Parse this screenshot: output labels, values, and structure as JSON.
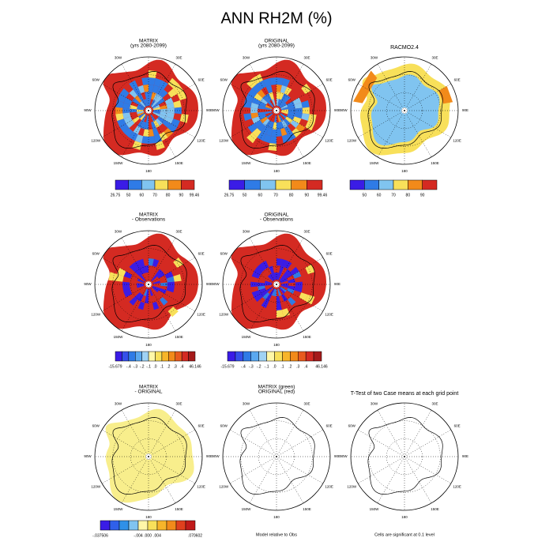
{
  "title": "ANN RH2M (%)",
  "longitude_labels": [
    "30E",
    "60E",
    "90E",
    "120E",
    "150E",
    "180",
    "150W",
    "120W",
    "90W",
    "60W",
    "30W"
  ],
  "panels": [
    {
      "title": [
        "MATRIX",
        "(yrs 2080-2099)"
      ],
      "colorbar": [
        "26.75",
        "50",
        "60",
        "70",
        "80",
        "90",
        "99.46"
      ]
    },
    {
      "title": [
        "ORIGINAL",
        "(yrs 2080-2099)"
      ],
      "colorbar": [
        "26.75",
        "50",
        "60",
        "70",
        "80",
        "90",
        "99.46"
      ]
    },
    {
      "title": [
        "RACMO2.4"
      ],
      "colorbar": [
        "50",
        "60",
        "70",
        "80",
        "90"
      ]
    },
    {
      "title": [
        "MATRIX",
        "- Observations"
      ],
      "colorbar": [
        "-15.679",
        "-.4",
        "-.3",
        "-.2",
        "-.1",
        ".0",
        ".1",
        ".2",
        ".3",
        ".4",
        "46.146"
      ]
    },
    {
      "title": [
        "ORIGINAL",
        "- Observations"
      ],
      "colorbar": [
        "-15.679",
        "-.4",
        "-.3",
        "-.2",
        "-.1",
        ".0",
        ".1",
        ".2",
        ".3",
        ".4",
        "46.146"
      ]
    },
    {
      "title": [
        "MATRIX",
        "- ORIGINAL"
      ],
      "colorbar": [
        "-.037506",
        "-.004",
        ".000",
        ".004",
        ".070602"
      ]
    },
    {
      "title": [
        "MATRIX (green)",
        "ORIGINAL (red)"
      ],
      "footnote": "Model relative to Obs"
    },
    {
      "title": [
        "T-Test of two Case means at each grid point"
      ],
      "footnote": "Cells are significant at 0.1 level"
    }
  ]
}
